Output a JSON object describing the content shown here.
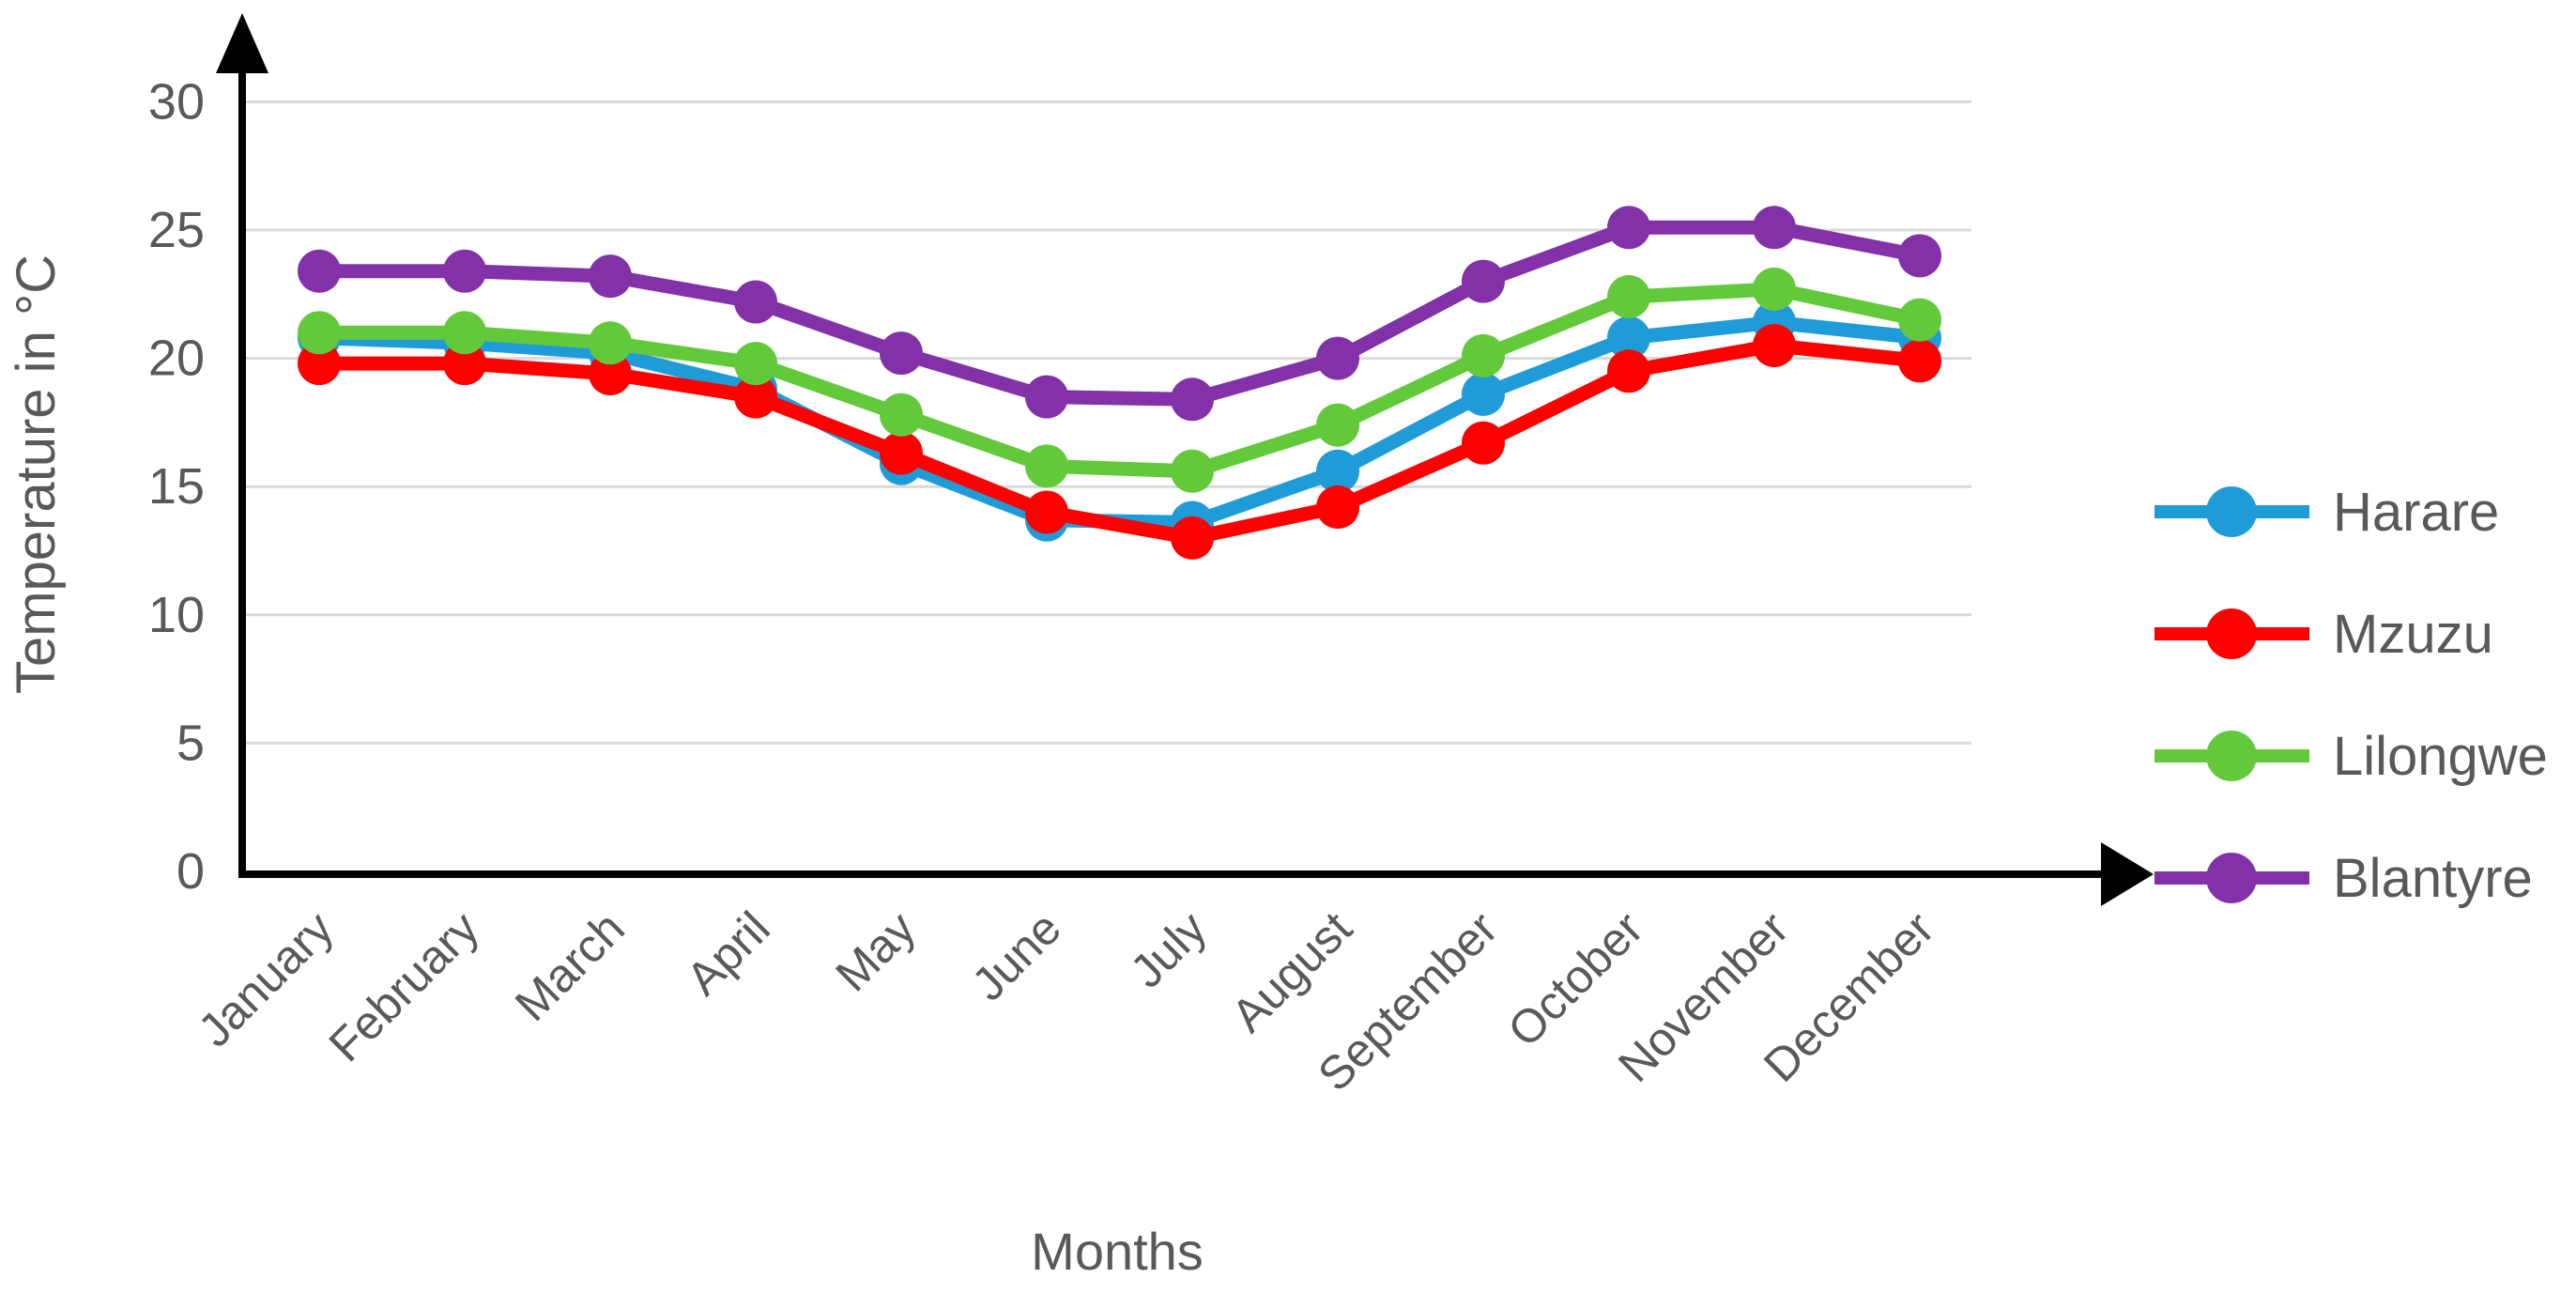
{
  "chart_data": {
    "type": "line",
    "title": "",
    "xlabel": "Months",
    "ylabel": "Temperature in °C",
    "categories": [
      "January",
      "February",
      "March",
      "April",
      "May",
      "June",
      "July",
      "August",
      "September",
      "October",
      "November",
      "December"
    ],
    "series": [
      {
        "name": "Harare",
        "color": "#1F9CD8",
        "values": [
          20.8,
          20.6,
          20.2,
          18.8,
          15.9,
          13.7,
          13.6,
          15.6,
          18.6,
          20.8,
          21.4,
          20.8
        ]
      },
      {
        "name": "Mzuzu",
        "color": "#FE0000",
        "values": [
          19.8,
          19.8,
          19.4,
          18.5,
          16.3,
          14.0,
          13.0,
          14.2,
          16.7,
          19.5,
          20.5,
          19.9
        ]
      },
      {
        "name": "Lilongwe",
        "color": "#62C93B",
        "values": [
          21.0,
          21.0,
          20.6,
          19.8,
          17.8,
          15.8,
          15.6,
          17.4,
          20.1,
          22.4,
          22.7,
          21.5
        ]
      },
      {
        "name": "Blantyre",
        "color": "#8331A8",
        "values": [
          23.4,
          23.4,
          23.2,
          22.2,
          20.2,
          18.5,
          18.4,
          20.0,
          23.0,
          25.1,
          25.1,
          24.0
        ]
      }
    ],
    "ylim": [
      0,
      30
    ],
    "yticks": [
      0,
      5,
      10,
      15,
      20,
      25,
      30
    ],
    "grid": true,
    "gridline_color": "#D9D9D9",
    "text_color": "#595959",
    "axis_color": "#000000",
    "axis_arrows": true,
    "legend_position": "right",
    "marker": "circle"
  }
}
